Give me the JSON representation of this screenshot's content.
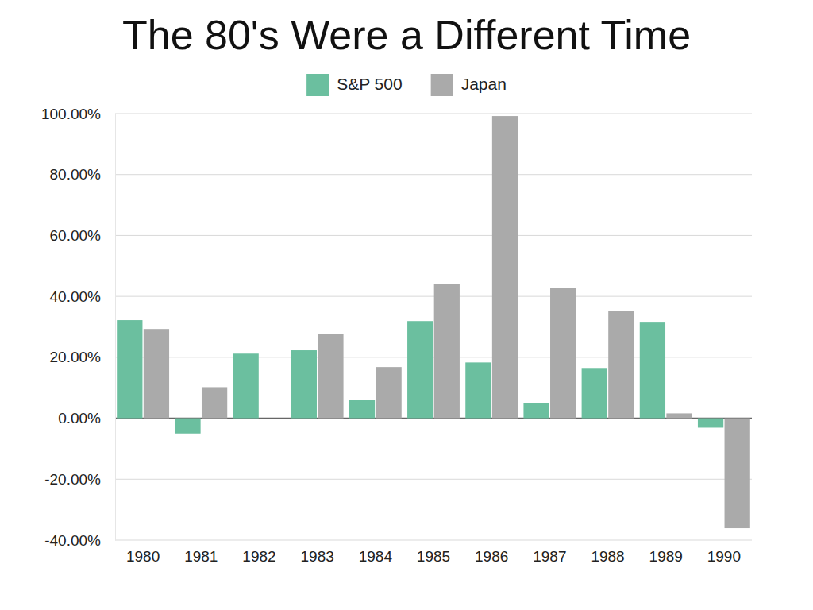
{
  "chart_data": {
    "type": "bar",
    "title": "The 80's Were a Different Time",
    "categories": [
      "1980",
      "1981",
      "1982",
      "1983",
      "1984",
      "1985",
      "1986",
      "1987",
      "1988",
      "1989",
      "1990"
    ],
    "series": [
      {
        "name": "S&P 500",
        "color": "#6bbf9f",
        "values": [
          32.2,
          -5.0,
          21.2,
          22.3,
          6.0,
          31.9,
          18.3,
          5.0,
          16.5,
          31.4,
          -3.1
        ]
      },
      {
        "name": "Japan",
        "color": "#aaaaaa",
        "values": [
          29.3,
          10.2,
          0,
          27.7,
          16.8,
          44.0,
          99.2,
          42.9,
          35.3,
          1.6,
          -36.1
        ]
      }
    ],
    "ylim": [
      -40,
      100
    ],
    "yticks": [
      {
        "value": -40,
        "label": "-40.00%"
      },
      {
        "value": -20,
        "label": "-20.00%"
      },
      {
        "value": 0,
        "label": "0.00%"
      },
      {
        "value": 20,
        "label": "20.00%"
      },
      {
        "value": 40,
        "label": "40.00%"
      },
      {
        "value": 60,
        "label": "60.00%"
      },
      {
        "value": 80,
        "label": "80.00%"
      },
      {
        "value": 100,
        "label": "100.00%"
      }
    ],
    "grid": true,
    "legend": "top"
  }
}
